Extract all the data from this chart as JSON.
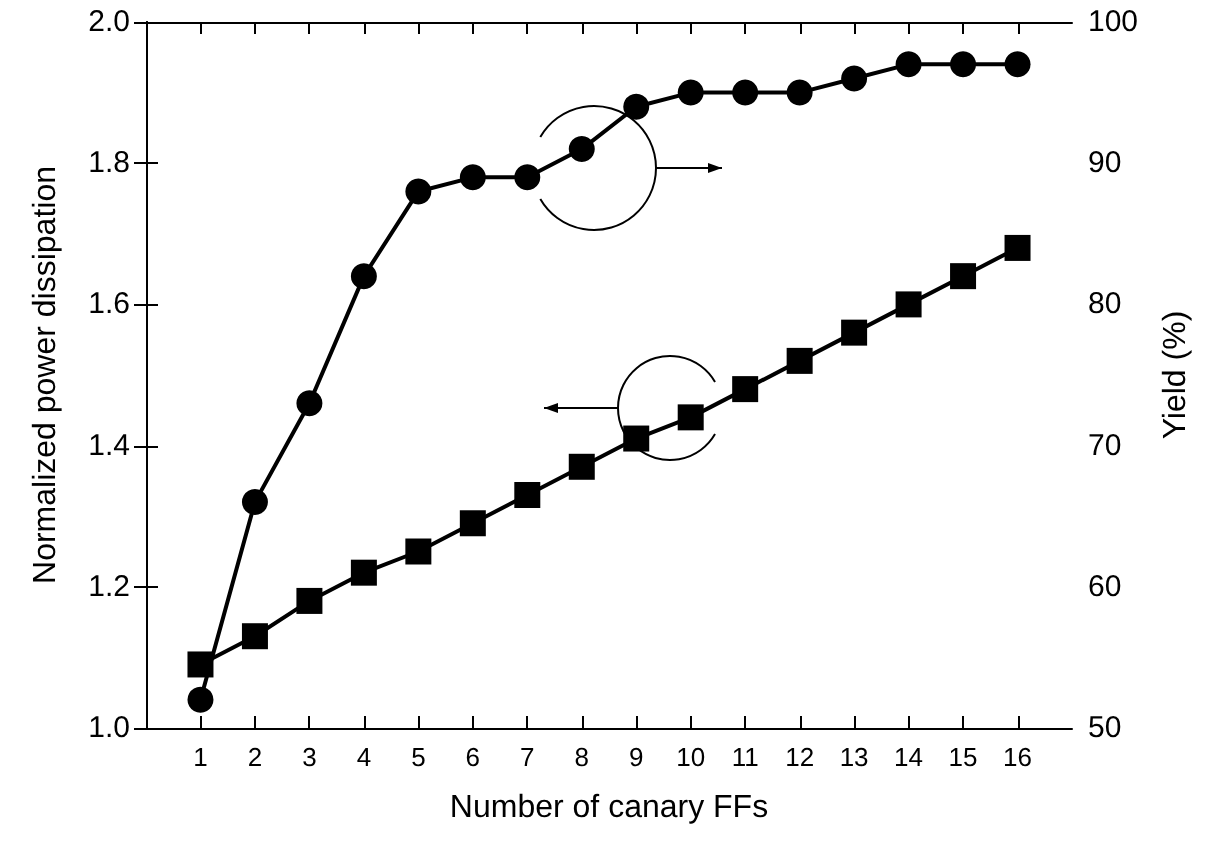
{
  "chart_data": {
    "type": "line",
    "xlabel": "Number of canary FFs",
    "ylabel": "Normalized power dissipation",
    "y2label": "Yield (%)",
    "x": [
      1,
      2,
      3,
      4,
      5,
      6,
      7,
      8,
      9,
      10,
      11,
      12,
      13,
      14,
      15,
      16
    ],
    "xlim": [
      0,
      17
    ],
    "xticks": [
      1,
      2,
      3,
      4,
      5,
      6,
      7,
      8,
      9,
      10,
      11,
      12,
      13,
      14,
      15,
      16
    ],
    "ylim": [
      1.0,
      2.0
    ],
    "yticks": [
      {
        "value": 1.0,
        "label": "1.0"
      },
      {
        "value": 1.2,
        "label": "1.2"
      },
      {
        "value": 1.4,
        "label": "1.4"
      },
      {
        "value": 1.6,
        "label": "1.6"
      },
      {
        "value": 1.8,
        "label": "1.8"
      },
      {
        "value": 2.0,
        "label": "2.0"
      }
    ],
    "y2lim": [
      50,
      100
    ],
    "y2ticks": [
      50,
      60,
      70,
      80,
      90,
      100
    ],
    "series": [
      {
        "color": "#000000",
        "marker": "square",
        "values": [
          1.09,
          1.13,
          1.18,
          1.22,
          1.25,
          1.29,
          1.33,
          1.37,
          1.41,
          1.44,
          1.48,
          1.52,
          1.56,
          1.6,
          1.64,
          1.68
        ]
      },
      {
        "color": "#000000",
        "marker": "circle",
        "axis": "y2",
        "values": [
          52,
          66,
          73,
          82,
          88,
          89,
          89,
          91,
          94,
          95,
          95,
          95,
          96,
          97,
          97,
          97
        ]
      }
    ],
    "line_style": "solid"
  }
}
